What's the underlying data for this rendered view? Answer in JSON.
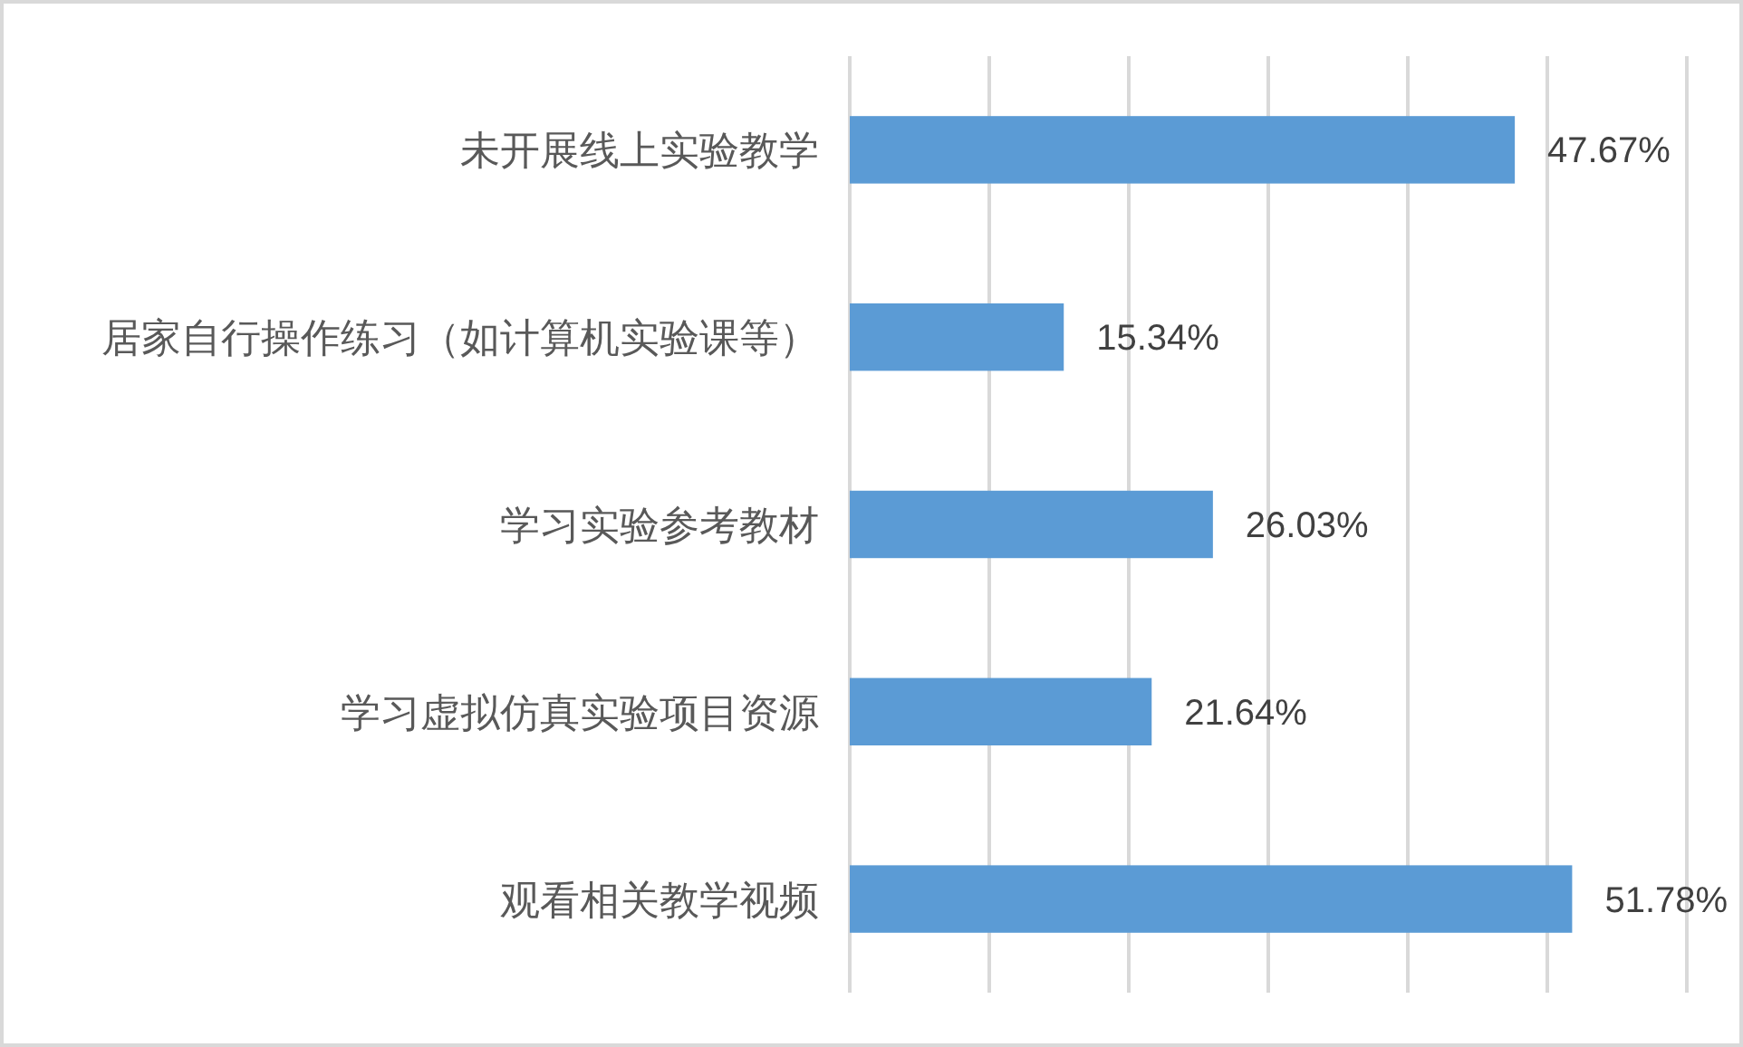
{
  "chart_data": {
    "type": "bar",
    "orientation": "horizontal",
    "categories": [
      "未开展线上实验教学",
      "居家自行操作练习（如计算机实验课等）",
      "学习实验参考教材",
      "学习虚拟仿真实验项目资源",
      "观看相关教学视频"
    ],
    "values": [
      47.67,
      15.34,
      26.03,
      21.64,
      51.78
    ],
    "value_labels": [
      "47.67%",
      "15.34%",
      "26.03%",
      "21.64%",
      "51.78%"
    ],
    "color": "#5b9bd5",
    "xlim": [
      0,
      60
    ],
    "xticks": [
      {
        "value": 0,
        "label": null
      },
      {
        "value": 10,
        "label": null
      },
      {
        "value": 20,
        "label": null
      },
      {
        "value": 30,
        "label": null
      },
      {
        "value": 40,
        "label": null
      },
      {
        "value": 50,
        "label": null
      },
      {
        "value": 60,
        "label": null
      }
    ],
    "grid": "x",
    "tick_labels": "y"
  }
}
